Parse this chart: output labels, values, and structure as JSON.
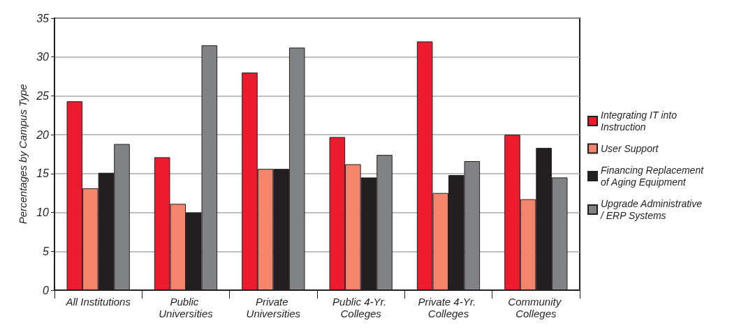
{
  "chart_data": {
    "type": "bar",
    "ylabel": "Percentages by Campus Type",
    "categories": [
      "All Institutions",
      "Public Universities",
      "Private Universities",
      "Public 4-Yr. Colleges",
      "Private 4-Yr. Colleges",
      "Community Colleges"
    ],
    "series": [
      {
        "name": "Integrating IT into Instruction",
        "color": "#ec1c2e",
        "values": [
          24.3,
          17.1,
          28.0,
          19.7,
          32.0,
          20.0
        ]
      },
      {
        "name": "User Support",
        "color": "#f4846c",
        "values": [
          13.1,
          11.1,
          15.6,
          16.2,
          12.5,
          11.7
        ]
      },
      {
        "name": "Financing Replacement of Aging Equipment",
        "color": "#231f20",
        "values": [
          15.1,
          10.0,
          15.6,
          14.5,
          14.8,
          18.3
        ]
      },
      {
        "name": "Upgrade Administrative/ ERP Systems",
        "color": "#808285",
        "values": [
          18.8,
          31.5,
          31.2,
          17.4,
          16.6,
          14.5
        ]
      }
    ],
    "ylim": [
      0,
      35
    ],
    "yticks": [
      0,
      5,
      10,
      15,
      20,
      25,
      30,
      35
    ],
    "grid": "y",
    "legend": "right"
  }
}
